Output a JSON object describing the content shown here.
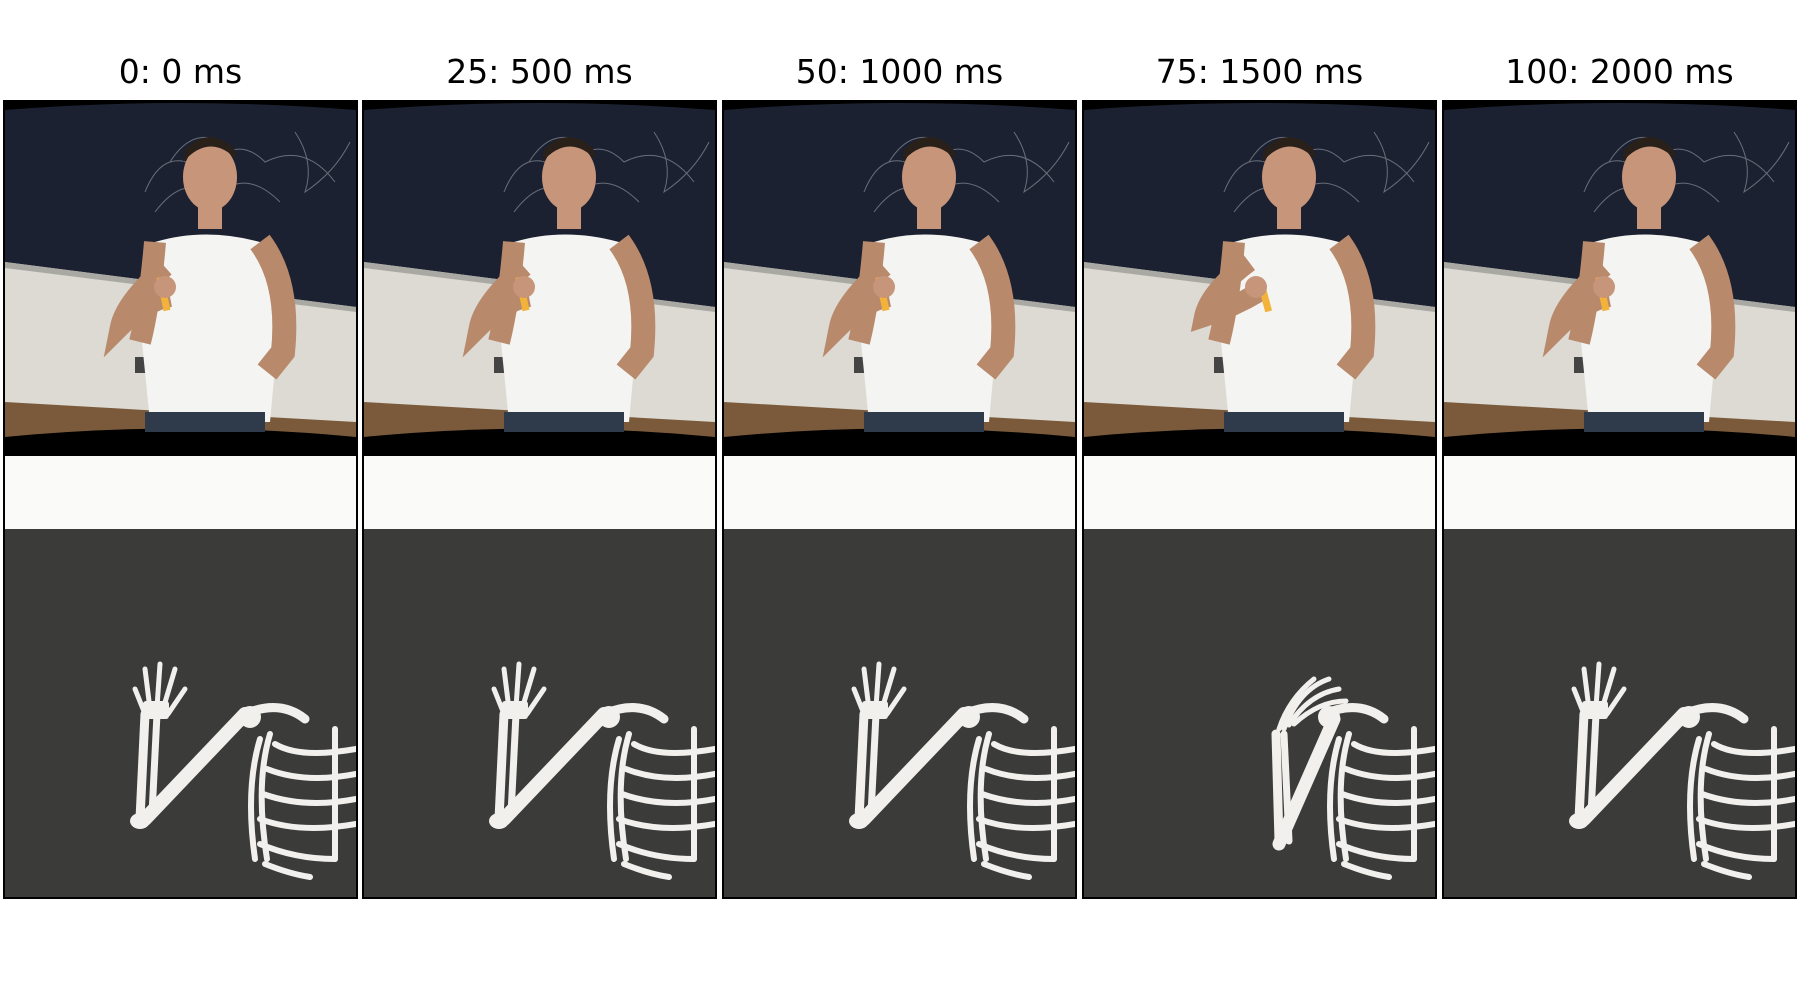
{
  "frames": [
    {
      "label": "0: 0 ms",
      "arm_pose": "extended",
      "hand_dx": 0
    },
    {
      "label": "25: 500 ms",
      "arm_pose": "extended",
      "hand_dx": 0
    },
    {
      "label": "50: 1000 ms",
      "arm_pose": "extended",
      "hand_dx": 0
    },
    {
      "label": "75: 1500 ms",
      "arm_pose": "flexed",
      "hand_dx": 0
    },
    {
      "label": "100: 2000 ms",
      "arm_pose": "extended",
      "hand_dx": 0
    }
  ],
  "colors": {
    "chalkboard": "#1b2130",
    "wall": "#dcdad3",
    "floor": "#7a5a3a",
    "render_bg": "#3b3c3a",
    "bone": "#f1f0ec"
  }
}
